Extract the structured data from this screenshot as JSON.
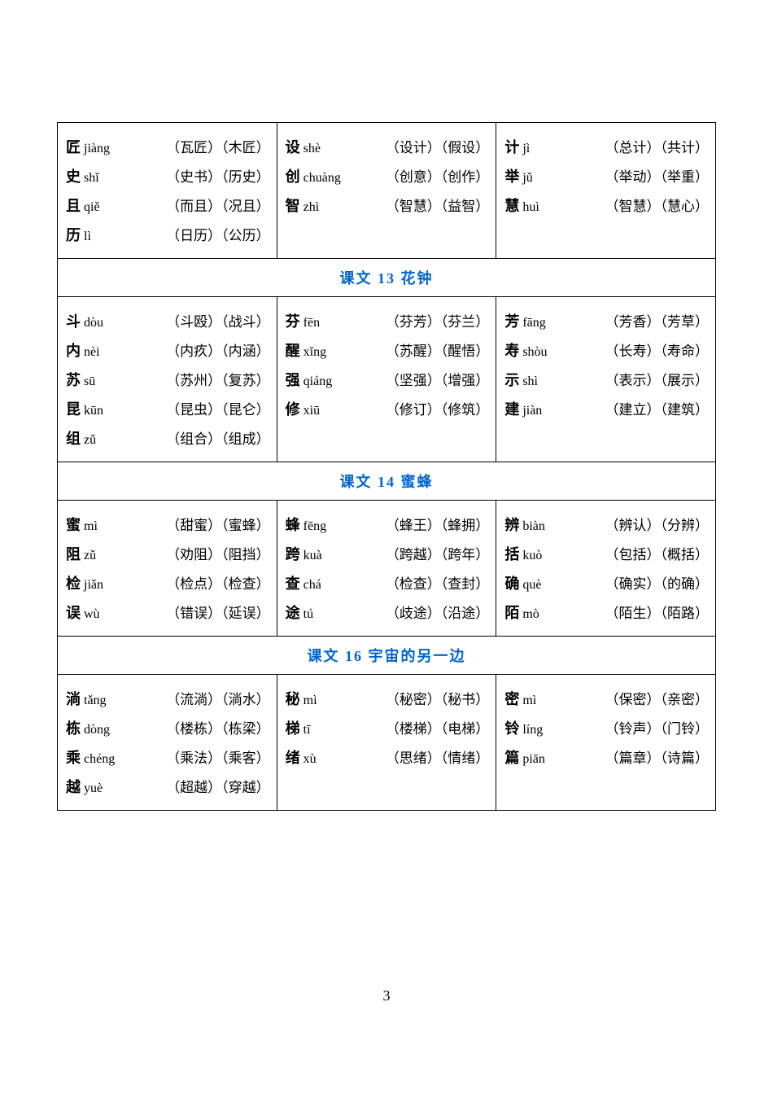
{
  "page_number": "3",
  "colors": {
    "header_text": "#0066cc",
    "border": "#000000",
    "text": "#000000",
    "background": "#ffffff"
  },
  "typography": {
    "font_family": "SimSun",
    "char_fontsize": 18,
    "char_weight": "bold",
    "pinyin_fontsize": 16,
    "words_fontsize": 17,
    "header_fontsize": 18
  },
  "sections": [
    {
      "header": "",
      "rows": [
        [
          {
            "char": "匠",
            "pinyin": "jiàng",
            "w1": "瓦匠",
            "w2": "木匠"
          },
          {
            "char": "设",
            "pinyin": "shè",
            "w1": "设计",
            "w2": "假设"
          },
          {
            "char": "计",
            "pinyin": "jì",
            "w1": "总计",
            "w2": "共计"
          }
        ],
        [
          {
            "char": "史",
            "pinyin": "shǐ",
            "w1": "史书",
            "w2": "历史"
          },
          {
            "char": "创",
            "pinyin": "chuàng",
            "w1": "创意",
            "w2": "创作"
          },
          {
            "char": "举",
            "pinyin": "jǔ",
            "w1": "举动",
            "w2": "举重"
          }
        ],
        [
          {
            "char": "且",
            "pinyin": "qiě",
            "w1": "而且",
            "w2": "况且"
          },
          {
            "char": "智",
            "pinyin": "zhì",
            "w1": "智慧",
            "w2": "益智"
          },
          {
            "char": "慧",
            "pinyin": "huì",
            "w1": "智慧",
            "w2": "慧心"
          }
        ],
        [
          {
            "char": "历",
            "pinyin": "lì",
            "w1": "日历",
            "w2": "公历"
          },
          null,
          null
        ]
      ]
    },
    {
      "header": "课文 13 花钟",
      "rows": [
        [
          {
            "char": "斗",
            "pinyin": "dòu",
            "w1": "斗殴",
            "w2": "战斗"
          },
          {
            "char": "芬",
            "pinyin": "fēn",
            "w1": "芬芳",
            "w2": "芬兰"
          },
          {
            "char": "芳",
            "pinyin": "fāng",
            "w1": "芳香",
            "w2": "芳草"
          }
        ],
        [
          {
            "char": "内",
            "pinyin": "nèi",
            "w1": "内疚",
            "w2": "内涵"
          },
          {
            "char": "醒",
            "pinyin": "xǐng",
            "w1": "苏醒",
            "w2": "醒悟"
          },
          {
            "char": "寿",
            "pinyin": "shòu",
            "w1": "长寿",
            "w2": "寿命"
          }
        ],
        [
          {
            "char": "苏",
            "pinyin": "sū",
            "w1": "苏州",
            "w2": "复苏"
          },
          {
            "char": "强",
            "pinyin": "qiáng",
            "w1": "坚强",
            "w2": "增强"
          },
          {
            "char": "示",
            "pinyin": "shì",
            "w1": "表示",
            "w2": "展示"
          }
        ],
        [
          {
            "char": "昆",
            "pinyin": "kūn",
            "w1": "昆虫",
            "w2": "昆仑"
          },
          {
            "char": "修",
            "pinyin": "xiū",
            "w1": "修订",
            "w2": "修筑"
          },
          {
            "char": "建",
            "pinyin": "jiàn",
            "w1": "建立",
            "w2": "建筑"
          }
        ],
        [
          {
            "char": "组",
            "pinyin": "zǔ",
            "w1": "组合",
            "w2": "组成"
          },
          null,
          null
        ]
      ]
    },
    {
      "header": "课文 14 蜜蜂",
      "rows": [
        [
          {
            "char": "蜜",
            "pinyin": "mì",
            "w1": "甜蜜",
            "w2": "蜜蜂"
          },
          {
            "char": "蜂",
            "pinyin": "fēng",
            "w1": "蜂王",
            "w2": "蜂拥"
          },
          {
            "char": "辨",
            "pinyin": "biàn",
            "w1": "辨认",
            "w2": "分辨"
          }
        ],
        [
          {
            "char": "阻",
            "pinyin": "zǔ",
            "w1": "劝阻",
            "w2": "阻挡"
          },
          {
            "char": "跨",
            "pinyin": "kuà",
            "w1": "跨越",
            "w2": "跨年"
          },
          {
            "char": "括",
            "pinyin": "kuò",
            "w1": "包括",
            "w2": "概括"
          }
        ],
        [
          {
            "char": "检",
            "pinyin": "jiǎn",
            "w1": "检点",
            "w2": "检查"
          },
          {
            "char": "查",
            "pinyin": "chá",
            "w1": "检查",
            "w2": "查封"
          },
          {
            "char": "确",
            "pinyin": "què",
            "w1": "确实",
            "w2": "的确"
          }
        ],
        [
          {
            "char": "误",
            "pinyin": "wù",
            "w1": "错误",
            "w2": "延误"
          },
          {
            "char": "途",
            "pinyin": "tú",
            "w1": "歧途",
            "w2": "沿途"
          },
          {
            "char": "陌",
            "pinyin": "mò",
            "w1": "陌生",
            "w2": "陌路"
          }
        ]
      ]
    },
    {
      "header": "课文 16 宇宙的另一边",
      "rows": [
        [
          {
            "char": "淌",
            "pinyin": "tǎng",
            "w1": "流淌",
            "w2": "淌水"
          },
          {
            "char": "秘",
            "pinyin": "mì",
            "w1": "秘密",
            "w2": "秘书"
          },
          {
            "char": "密",
            "pinyin": "mì",
            "w1": "保密",
            "w2": "亲密"
          }
        ],
        [
          {
            "char": "栋",
            "pinyin": "dòng",
            "w1": "楼栋",
            "w2": "栋梁"
          },
          {
            "char": "梯",
            "pinyin": "tī",
            "w1": "楼梯",
            "w2": "电梯"
          },
          {
            "char": "铃",
            "pinyin": "líng",
            "w1": "铃声",
            "w2": "门铃"
          }
        ],
        [
          {
            "char": "乘",
            "pinyin": "chéng",
            "w1": "乘法",
            "w2": "乘客"
          },
          {
            "char": "绪",
            "pinyin": "xù",
            "w1": "思绪",
            "w2": "情绪"
          },
          {
            "char": "篇",
            "pinyin": "piān",
            "w1": "篇章",
            "w2": "诗篇"
          }
        ],
        [
          {
            "char": "越",
            "pinyin": "yuè",
            "w1": "超越",
            "w2": "穿越"
          },
          null,
          null
        ]
      ]
    }
  ]
}
